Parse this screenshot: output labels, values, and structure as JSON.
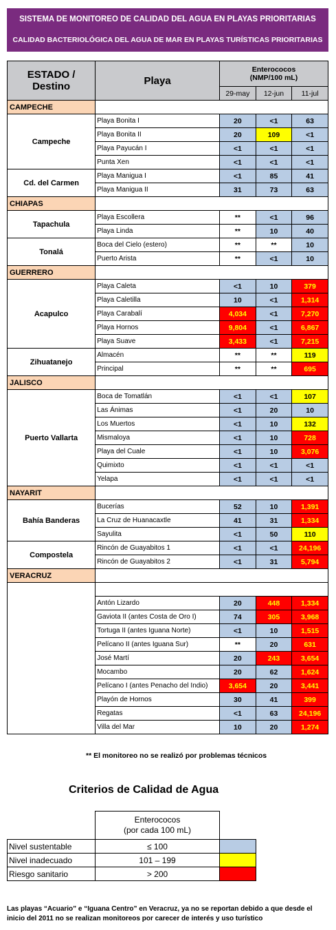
{
  "banner": {
    "line1": "SISTEMA DE MONITOREO DE CALIDAD DEL AGUA EN PLAYAS PRIORITARIAS",
    "line2": "CALIDAD BACTERIOLÓGICA DEL AGUA DE MAR EN PLAYAS TURÍSTICAS PRIORITARIAS"
  },
  "table": {
    "header_estado": "ESTADO / Destino",
    "header_playa": "Playa",
    "header_ent_line1": "Enterococos",
    "header_ent_line2": "(NMP/100 mL)",
    "dates": [
      "29-may",
      "12-jun",
      "11-jul"
    ],
    "states": [
      {
        "name": "CAMPECHE",
        "destinations": [
          {
            "name": "Campeche",
            "beaches": [
              {
                "name": "Playa Bonita I",
                "values": [
                  "20",
                  "<1",
                  "63"
                ],
                "colors": [
                  "blue",
                  "blue",
                  "blue"
                ]
              },
              {
                "name": "Playa Bonita II",
                "values": [
                  "20",
                  "109",
                  "<1"
                ],
                "colors": [
                  "blue",
                  "yellow",
                  "blue"
                ]
              },
              {
                "name": "Playa Payucán I",
                "values": [
                  "<1",
                  "<1",
                  "<1"
                ],
                "colors": [
                  "blue",
                  "blue",
                  "blue"
                ]
              },
              {
                "name": "Punta Xen",
                "values": [
                  "<1",
                  "<1",
                  "<1"
                ],
                "colors": [
                  "blue",
                  "blue",
                  "blue"
                ]
              }
            ]
          },
          {
            "name": "Cd. del Carmen",
            "beaches": [
              {
                "name": "Playa Manigua I",
                "values": [
                  "<1",
                  "85",
                  "41"
                ],
                "colors": [
                  "blue",
                  "blue",
                  "blue"
                ]
              },
              {
                "name": "Playa Manigua II",
                "values": [
                  "31",
                  "73",
                  "63"
                ],
                "colors": [
                  "blue",
                  "blue",
                  "blue"
                ]
              }
            ]
          }
        ]
      },
      {
        "name": "CHIAPAS",
        "destinations": [
          {
            "name": "Tapachula",
            "beaches": [
              {
                "name": "Playa Escollera",
                "values": [
                  "**",
                  "<1",
                  "96"
                ],
                "colors": [
                  "white",
                  "blue",
                  "blue"
                ]
              },
              {
                "name": "Playa Linda",
                "values": [
                  "**",
                  "10",
                  "40"
                ],
                "colors": [
                  "white",
                  "blue",
                  "blue"
                ]
              }
            ]
          },
          {
            "name": "Tonalá",
            "beaches": [
              {
                "name": "Boca del Cielo (estero)",
                "values": [
                  "**",
                  "**",
                  "10"
                ],
                "colors": [
                  "white",
                  "white",
                  "blue"
                ]
              },
              {
                "name": "Puerto Arista",
                "values": [
                  "**",
                  "<1",
                  "10"
                ],
                "colors": [
                  "white",
                  "blue",
                  "blue"
                ]
              }
            ]
          }
        ]
      },
      {
        "name": "GUERRERO",
        "destinations": [
          {
            "name": "Acapulco",
            "beaches": [
              {
                "name": "Playa Caleta",
                "values": [
                  "<1",
                  "10",
                  "379"
                ],
                "colors": [
                  "blue",
                  "blue",
                  "red"
                ]
              },
              {
                "name": "Playa Caletilla",
                "values": [
                  "10",
                  "<1",
                  "1,314"
                ],
                "colors": [
                  "blue",
                  "blue",
                  "red"
                ]
              },
              {
                "name": "Playa Carabalí",
                "values": [
                  "4,034",
                  "<1",
                  "7,270"
                ],
                "colors": [
                  "red",
                  "blue",
                  "red"
                ]
              },
              {
                "name": "Playa Hornos",
                "values": [
                  "9,804",
                  "<1",
                  "6,867"
                ],
                "colors": [
                  "red",
                  "blue",
                  "red"
                ]
              },
              {
                "name": "Playa Suave",
                "values": [
                  "3,433",
                  "<1",
                  "7,215"
                ],
                "colors": [
                  "red",
                  "blue",
                  "red"
                ]
              }
            ]
          },
          {
            "name": "Zihuatanejo",
            "beaches": [
              {
                "name": "Almacén",
                "values": [
                  "**",
                  "**",
                  "119"
                ],
                "colors": [
                  "white",
                  "white",
                  "yellow"
                ]
              },
              {
                "name": "Principal",
                "values": [
                  "**",
                  "**",
                  "695"
                ],
                "colors": [
                  "white",
                  "white",
                  "red"
                ]
              }
            ]
          }
        ]
      },
      {
        "name": "JALISCO",
        "destinations": [
          {
            "name": "Puerto Vallarta",
            "beaches": [
              {
                "name": "Boca de Tomatlán",
                "values": [
                  "<1",
                  "<1",
                  "107"
                ],
                "colors": [
                  "blue",
                  "blue",
                  "yellow"
                ]
              },
              {
                "name": "Las Ánimas",
                "values": [
                  "<1",
                  "20",
                  "10"
                ],
                "colors": [
                  "blue",
                  "blue",
                  "blue"
                ]
              },
              {
                "name": "Los Muertos",
                "values": [
                  "<1",
                  "10",
                  "132"
                ],
                "colors": [
                  "blue",
                  "blue",
                  "yellow"
                ]
              },
              {
                "name": "Mismaloya",
                "values": [
                  "<1",
                  "10",
                  "728"
                ],
                "colors": [
                  "blue",
                  "blue",
                  "red"
                ]
              },
              {
                "name": "Playa del Cuale",
                "values": [
                  "<1",
                  "10",
                  "3,076"
                ],
                "colors": [
                  "blue",
                  "blue",
                  "red"
                ]
              },
              {
                "name": "Quimixto",
                "values": [
                  "<1",
                  "<1",
                  "<1"
                ],
                "colors": [
                  "blue",
                  "blue",
                  "blue"
                ]
              },
              {
                "name": "Yelapa",
                "values": [
                  "<1",
                  "<1",
                  "<1"
                ],
                "colors": [
                  "blue",
                  "blue",
                  "blue"
                ]
              }
            ]
          }
        ]
      },
      {
        "name": "NAYARIT",
        "destinations": [
          {
            "name": "Bahía Banderas",
            "beaches": [
              {
                "name": "Bucerías",
                "values": [
                  "52",
                  "10",
                  "1,391"
                ],
                "colors": [
                  "blue",
                  "blue",
                  "red"
                ]
              },
              {
                "name": "La Cruz de Huanacaxtle",
                "values": [
                  "41",
                  "31",
                  "1,334"
                ],
                "colors": [
                  "blue",
                  "blue",
                  "red"
                ]
              },
              {
                "name": "Sayulita",
                "values": [
                  "<1",
                  "50",
                  "110"
                ],
                "colors": [
                  "blue",
                  "blue",
                  "yellow"
                ]
              }
            ]
          },
          {
            "name": "Compostela",
            "beaches": [
              {
                "name": "Rincón de Guayabitos 1",
                "values": [
                  "<1",
                  "<1",
                  "24,196"
                ],
                "colors": [
                  "blue",
                  "blue",
                  "red"
                ]
              },
              {
                "name": "Rincón de Guayabitos 2",
                "values": [
                  "<1",
                  "31",
                  "5,794"
                ],
                "colors": [
                  "blue",
                  "blue",
                  "red"
                ]
              }
            ]
          }
        ]
      },
      {
        "name": "VERACRUZ",
        "destinations": [
          {
            "name": "",
            "beaches": [
              {
                "name": "Antón Lizardo",
                "values": [
                  "20",
                  "448",
                  "1,334"
                ],
                "colors": [
                  "blue",
                  "red",
                  "red"
                ]
              },
              {
                "name": "Gaviota II (antes Costa de Oro I)",
                "values": [
                  "74",
                  "305",
                  "3,968"
                ],
                "colors": [
                  "blue",
                  "red",
                  "red"
                ]
              },
              {
                "name": "Tortuga II (antes Iguana Norte)",
                "values": [
                  "<1",
                  "10",
                  "1,515"
                ],
                "colors": [
                  "blue",
                  "blue",
                  "red"
                ]
              },
              {
                "name": "Pelícano II (antes Iguana Sur)",
                "values": [
                  "**",
                  "20",
                  "631"
                ],
                "colors": [
                  "white",
                  "blue",
                  "red"
                ]
              },
              {
                "name": "José Martí",
                "values": [
                  "20",
                  "243",
                  "3,654"
                ],
                "colors": [
                  "blue",
                  "red",
                  "red"
                ]
              },
              {
                "name": "Mocambo",
                "values": [
                  "20",
                  "62",
                  "1,624"
                ],
                "colors": [
                  "blue",
                  "blue",
                  "red"
                ]
              },
              {
                "name": "Pelícano I (antes Penacho del Indio)",
                "values": [
                  "3,654",
                  "20",
                  "3,441"
                ],
                "colors": [
                  "red",
                  "blue",
                  "red"
                ]
              },
              {
                "name": "Playón de Hornos",
                "values": [
                  "30",
                  "41",
                  "399"
                ],
                "colors": [
                  "blue",
                  "blue",
                  "red"
                ]
              },
              {
                "name": "Regatas",
                "values": [
                  "<1",
                  "63",
                  "24,196"
                ],
                "colors": [
                  "blue",
                  "blue",
                  "red"
                ]
              },
              {
                "name": "Villa del Mar",
                "values": [
                  "10",
                  "20",
                  "1,274"
                ],
                "colors": [
                  "blue",
                  "blue",
                  "red"
                ]
              }
            ]
          }
        ]
      }
    ]
  },
  "note": "**  El monitoreo no se realizó por problemas técnicos",
  "criteria": {
    "title": "Criterios de Calidad de Agua",
    "header_line1": "Enterococos",
    "header_line2": "(por cada 100 mL)",
    "rows": [
      {
        "label": "Nivel sustentable",
        "range": "≤ 100",
        "color": "blue"
      },
      {
        "label": "Nivel inadecuado",
        "range": "101 – 199",
        "color": "yellow"
      },
      {
        "label": "Riesgo sanitario",
        "range": "> 200",
        "color": "red"
      }
    ]
  },
  "footer": "Las playas “Acuario” e “Iguana Centro” en Veracruz, ya no se reportan debido a que desde el inicio del 2011 no se realizan monitoreos por carecer de interés y uso turístico",
  "colors": {
    "blue": "#b8cce4",
    "yellow": "#ffff00",
    "red": "#ff0000",
    "state_bg": "#fbd5b5",
    "header_bg": "#c9cacd",
    "banner_bg": "#7a2b7f"
  }
}
